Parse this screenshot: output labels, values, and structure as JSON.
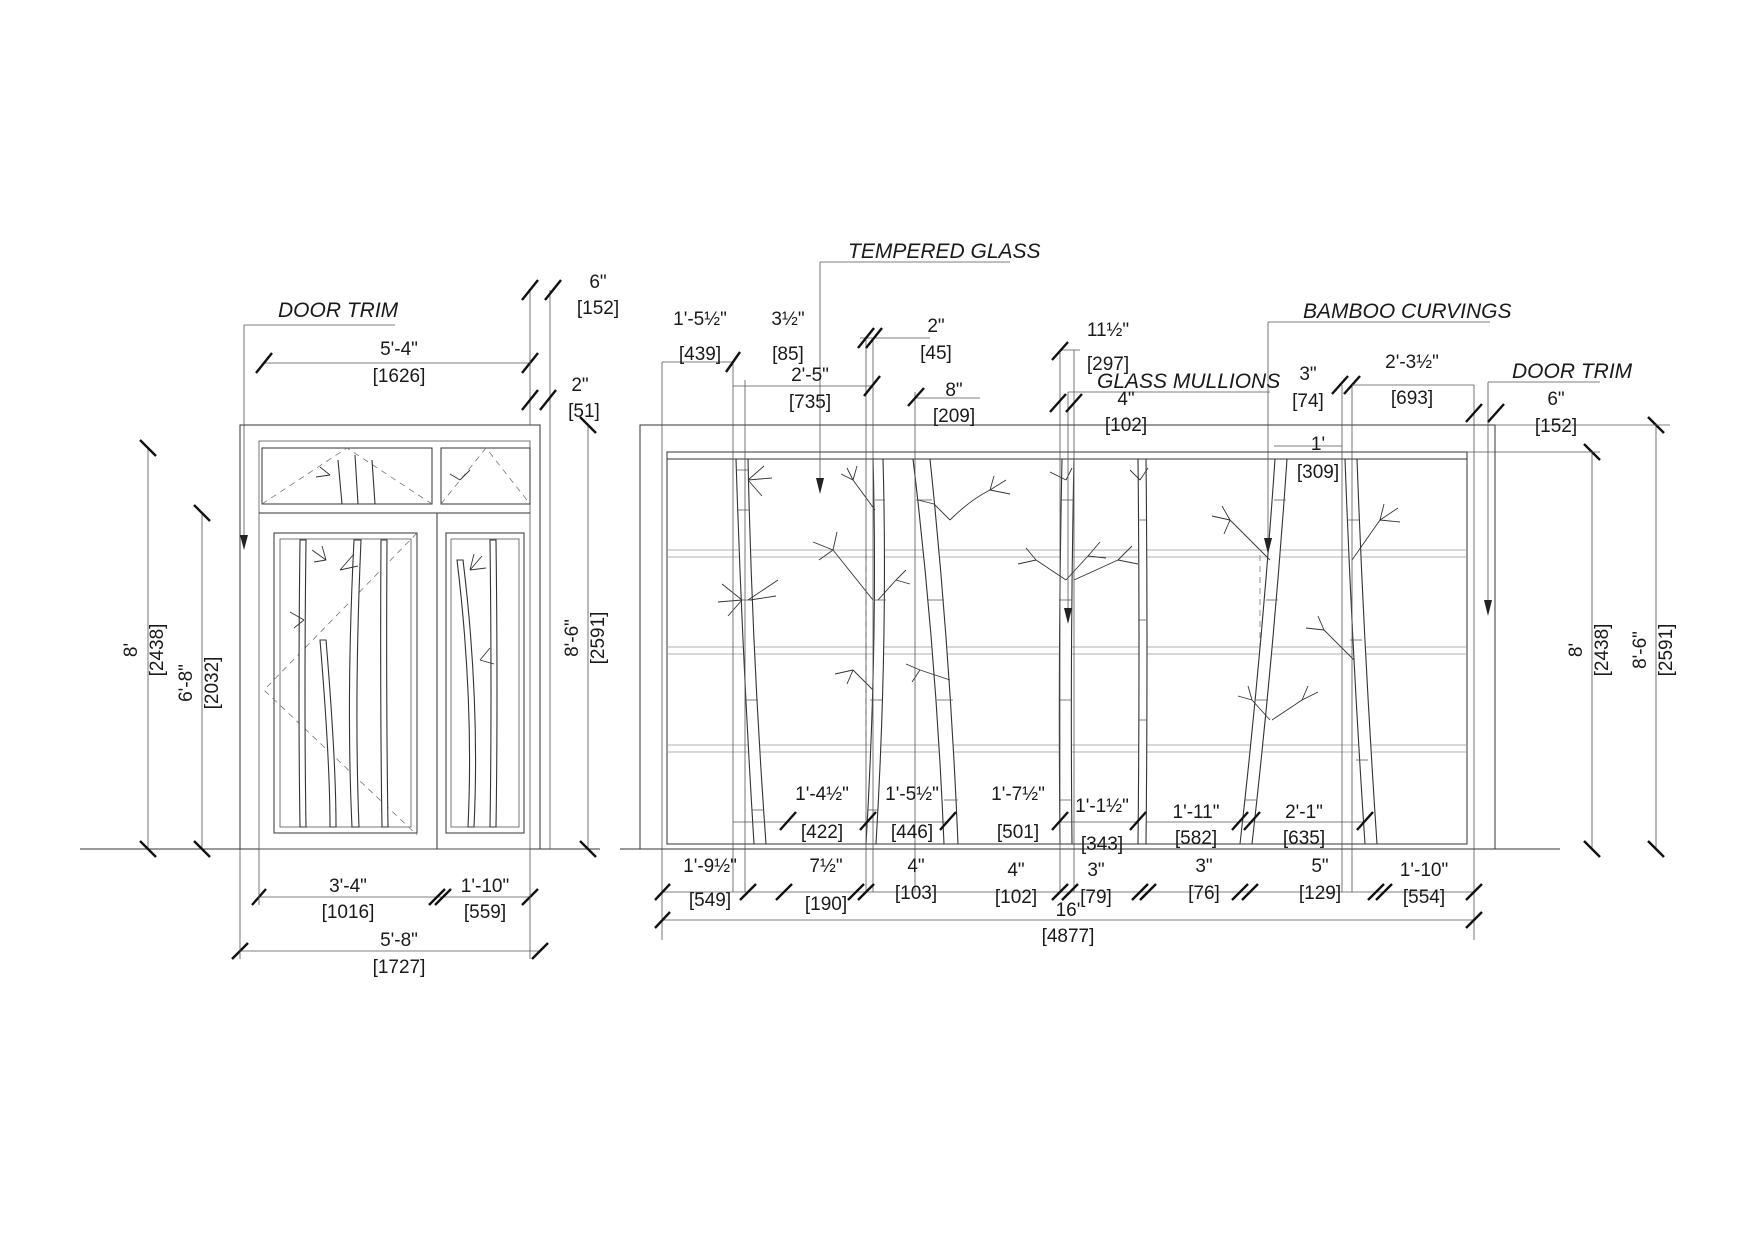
{
  "labels": {
    "door_trim_left": "DOOR TRIM",
    "tempered_glass": "TEMPERED GLASS",
    "bamboo_curvings": "BAMBOO CURVINGS",
    "glass_mullions": "GLASS MULLIONS",
    "door_trim_right": "DOOR TRIM"
  },
  "door_dims": {
    "top_width": {
      "imperial": "5'-4\"",
      "metric": "[1626]"
    },
    "trim_top": {
      "imperial": "6\"",
      "metric": "[152]"
    },
    "trim_side": {
      "imperial": "2\"",
      "metric": "[51]"
    },
    "overall_height": {
      "imperial": "8'",
      "metric": "[2438]"
    },
    "door_height": {
      "imperial": "6'-8\"",
      "metric": "[2032]"
    },
    "frame_height": {
      "imperial": "8'-6\"",
      "metric": "[2591]"
    },
    "door_leaf_width": {
      "imperial": "3'-4\"",
      "metric": "[1016]"
    },
    "sidelight_width": {
      "imperial": "1'-10\"",
      "metric": "[559]"
    },
    "overall_width": {
      "imperial": "5'-8\"",
      "metric": "[1727]"
    }
  },
  "wall_top_dims": [
    {
      "key": "d1",
      "imperial": "1'-5½\"",
      "metric": "[439]"
    },
    {
      "key": "d2",
      "imperial": "3½\"",
      "metric": "[85]"
    },
    {
      "key": "d3",
      "imperial": "2'-5\"",
      "metric": "[735]"
    },
    {
      "key": "d4",
      "imperial": "2\"",
      "metric": "[45]"
    },
    {
      "key": "d5",
      "imperial": "8\"",
      "metric": "[209]"
    },
    {
      "key": "d6",
      "imperial": "11½\"",
      "metric": "[297]"
    },
    {
      "key": "d7",
      "imperial": "4\"",
      "metric": "[102]"
    },
    {
      "key": "d8",
      "imperial": "3\"",
      "metric": "[74]"
    },
    {
      "key": "d9",
      "imperial": "2'-3½\"",
      "metric": "[693]"
    },
    {
      "key": "d10",
      "imperial": "1'",
      "metric": "[309]"
    },
    {
      "key": "d11",
      "imperial": "6\"",
      "metric": "[152]"
    }
  ],
  "wall_mid_dims": [
    {
      "key": "m1",
      "imperial": "1'-4½\"",
      "metric": "[422]"
    },
    {
      "key": "m2",
      "imperial": "1'-5½\"",
      "metric": "[446]"
    },
    {
      "key": "m3",
      "imperial": "1'-7½\"",
      "metric": "[501]"
    },
    {
      "key": "m4",
      "imperial": "1'-1½\"",
      "metric": "[343]"
    },
    {
      "key": "m5",
      "imperial": "1'-11\"",
      "metric": "[582]"
    },
    {
      "key": "m6",
      "imperial": "2'-1\"",
      "metric": "[635]"
    }
  ],
  "wall_bottom_dims": [
    {
      "key": "b1",
      "imperial": "1'-9½\"",
      "metric": "[549]"
    },
    {
      "key": "b2",
      "imperial": "7½\"",
      "metric": "[190]"
    },
    {
      "key": "b3",
      "imperial": "4\"",
      "metric": "[103]"
    },
    {
      "key": "b4",
      "imperial": "4\"",
      "metric": "[102]"
    },
    {
      "key": "b5",
      "imperial": "3\"",
      "metric": "[79]"
    },
    {
      "key": "b6",
      "imperial": "3\"",
      "metric": "[76]"
    },
    {
      "key": "b7",
      "imperial": "5\"",
      "metric": "[129]"
    },
    {
      "key": "b8",
      "imperial": "1'-10\"",
      "metric": "[554]"
    }
  ],
  "wall_overall": {
    "imperial": "16'",
    "metric": "[4877]"
  },
  "wall_right_dims": {
    "glass_height": {
      "imperial": "8'",
      "metric": "[2438]"
    },
    "total_height": {
      "imperial": "8'-6\"",
      "metric": "[2591]"
    }
  }
}
